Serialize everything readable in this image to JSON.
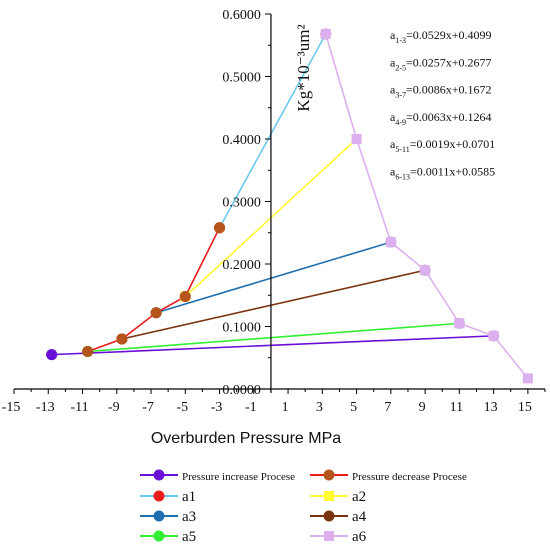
{
  "chart_data": {
    "type": "line",
    "xlabel": "Overburden Pressure MPa",
    "ylabel": "Kg*10⁻³um²",
    "xlim": [
      -15,
      16
    ],
    "ylim": [
      0,
      0.6
    ],
    "x_ticks": [
      -15,
      -13,
      -11,
      -9,
      -7,
      -5,
      -3,
      -1,
      1,
      3,
      5,
      7,
      9,
      11,
      13,
      15
    ],
    "y_ticks": [
      "0.0000",
      "0.1000",
      "0.2000",
      "0.3000",
      "0.4000",
      "0.5000",
      "0.6000"
    ],
    "grid": false,
    "legend_position": "bottom",
    "series": [
      {
        "name": "Pressure increase Procese",
        "color": "#6a0fd6",
        "marker": "circle",
        "points": [
          [
            -12.8,
            0.055
          ],
          [
            13.0,
            0.085
          ]
        ]
      },
      {
        "name": "Pressure decrease Procese",
        "color": "#ee1b1b",
        "marker": "circle",
        "marker_color": "#b5541b",
        "points": [
          [
            -10.7,
            0.06
          ],
          [
            -8.7,
            0.08
          ],
          [
            -6.7,
            0.122
          ],
          [
            -5.0,
            0.148
          ],
          [
            -3.0,
            0.258
          ]
        ]
      },
      {
        "name": "a1",
        "color": "#6ac8ef",
        "marker": "circle",
        "marker_color": "#ee1b1b",
        "points": [
          [
            -3.0,
            0.258
          ],
          [
            3.2,
            0.568
          ]
        ]
      },
      {
        "name": "a2",
        "color": "#ffff33",
        "marker": "square",
        "points": [
          [
            -5.0,
            0.148
          ],
          [
            5.0,
            0.4
          ]
        ]
      },
      {
        "name": "a3",
        "color": "#1f6fae",
        "marker": "circle",
        "points": [
          [
            -6.7,
            0.122
          ],
          [
            7.0,
            0.235
          ]
        ]
      },
      {
        "name": "a4",
        "color": "#7a3510",
        "marker": "circle",
        "points": [
          [
            -8.7,
            0.08
          ],
          [
            9.0,
            0.19
          ]
        ]
      },
      {
        "name": "a5",
        "color": "#33ee33",
        "marker": "circle",
        "points": [
          [
            -10.7,
            0.06
          ],
          [
            11.0,
            0.105
          ]
        ]
      },
      {
        "name": "a6",
        "color": "#dcb0ee",
        "marker": "square",
        "points": [
          [
            3.2,
            0.568
          ],
          [
            5.0,
            0.4
          ],
          [
            7.0,
            0.235
          ],
          [
            9.0,
            0.19
          ],
          [
            11.0,
            0.105
          ],
          [
            13.0,
            0.085
          ],
          [
            15.0,
            0.017
          ]
        ]
      }
    ],
    "equations": [
      {
        "base": "a",
        "sub": "1-3",
        "rest": "=0.0529x+0.4099"
      },
      {
        "base": "a",
        "sub": "2-5",
        "rest": "=0.0257x+0.2677"
      },
      {
        "base": "a",
        "sub": "3-7",
        "rest": "=0.0086x+0.1672"
      },
      {
        "base": "a",
        "sub": "4-9",
        "rest": "=0.0063x+0.1264"
      },
      {
        "base": "a",
        "sub": "5-11",
        "rest": "=0.0019x+0.0701"
      },
      {
        "base": "a",
        "sub": "6-13",
        "rest": "=0.0011x+0.0585"
      }
    ]
  }
}
